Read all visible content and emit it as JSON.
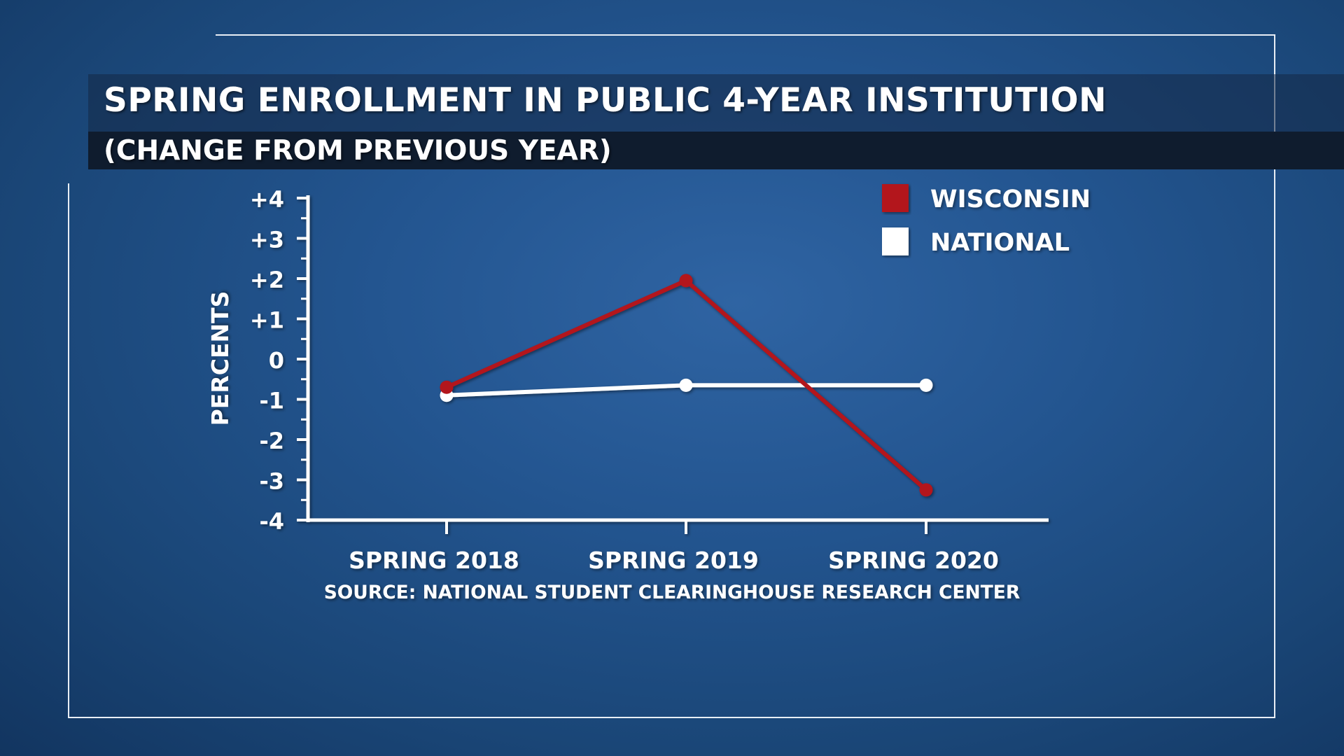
{
  "chart_data": {
    "type": "line",
    "title": "SPRING ENROLLMENT IN PUBLIC 4-YEAR INSTITUTION",
    "subtitle": "(CHANGE FROM PREVIOUS YEAR)",
    "ylabel": "PERCENTS",
    "source": "SOURCE: NATIONAL STUDENT CLEARINGHOUSE RESEARCH CENTER",
    "categories": [
      "SPRING 2018",
      "SPRING 2019",
      "SPRING 2020"
    ],
    "ylim": [
      -4,
      4
    ],
    "yticks": [
      {
        "value": 4,
        "label": "+4"
      },
      {
        "value": 3,
        "label": "+3"
      },
      {
        "value": 2,
        "label": "+2"
      },
      {
        "value": 1,
        "label": "+1"
      },
      {
        "value": 0,
        "label": "0"
      },
      {
        "value": -1,
        "label": "-1"
      },
      {
        "value": -2,
        "label": "-2"
      },
      {
        "value": -3,
        "label": "-3"
      },
      {
        "value": -4,
        "label": "-4"
      }
    ],
    "legend_position": "top-right",
    "grid": false,
    "series": [
      {
        "name": "WISCONSIN",
        "color": "#b3121b",
        "values": [
          -0.7,
          1.95,
          -3.25
        ]
      },
      {
        "name": "NATIONAL",
        "color": "#ffffff",
        "values": [
          -0.9,
          -0.65,
          -0.65
        ]
      }
    ]
  }
}
